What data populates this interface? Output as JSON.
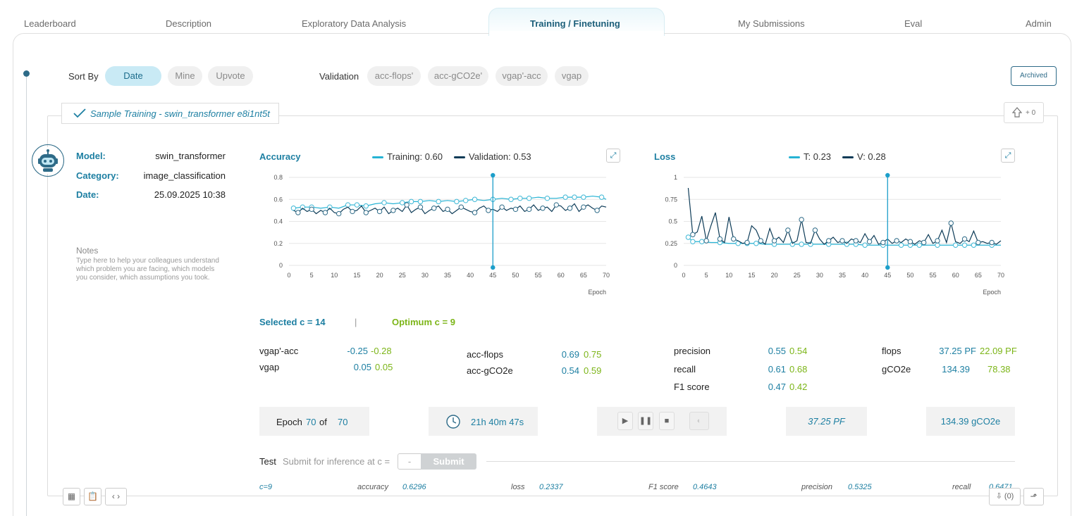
{
  "tabs": [
    {
      "label": "Leaderboard"
    },
    {
      "label": "Description"
    },
    {
      "label": "Exploratory Data Analysis"
    },
    {
      "label": "Training / Finetuning"
    },
    {
      "label": "My Submissions"
    },
    {
      "label": "Eval"
    },
    {
      "label": "Admin"
    }
  ],
  "filters": {
    "sort_by_label": "Sort By",
    "sort_options": [
      "Date",
      "Mine",
      "Upvote"
    ],
    "validation_label": "Validation",
    "validation_options": [
      "acc-flops'",
      "acc-gCO2e'",
      "vgap'-acc",
      "vgap"
    ],
    "archived_label": "Archived"
  },
  "card": {
    "title": "Sample Training - swin_transformer  e8i1nt5t",
    "upvotes": "+ 0",
    "model_key": "Model:",
    "model": "swin_transformer",
    "category_key": "Category:",
    "category": "image_classification",
    "date_key": "Date:",
    "date": "25.09.2025 10:38",
    "notes_label": "Notes",
    "notes_placeholder": "Type here to help your colleagues understand which problem you are facing, which models you consider, which assumptions you took."
  },
  "accuracy_chart": {
    "title": "Accuracy",
    "legend_training": "Training: 0.60",
    "legend_validation": "Validation: 0.53",
    "xlabel": "Epoch"
  },
  "loss_chart": {
    "title": "Loss",
    "legend_training": "T: 0.23",
    "legend_validation": "V: 0.28",
    "xlabel": "Epoch"
  },
  "selection": {
    "selected": "Selected c = 14",
    "separator": "|",
    "optimum": "Optimum c = 9"
  },
  "metrics": {
    "vgap_acc": {
      "name": "vgap'-acc",
      "sel": "-0.25",
      "opt": "-0.28"
    },
    "vgap": {
      "name": "vgap",
      "sel": "0.05",
      "opt": "0.05"
    },
    "acc_flops": {
      "name": "acc-flops",
      "sel": "0.69",
      "opt": "0.75"
    },
    "acc_gco2e": {
      "name": "acc-gCO2e",
      "sel": "0.54",
      "opt": "0.59"
    },
    "precision": {
      "name": "precision",
      "sel": "0.55",
      "opt": "0.54"
    },
    "recall": {
      "name": "recall",
      "sel": "0.61",
      "opt": "0.68"
    },
    "f1": {
      "name": "F1 score",
      "sel": "0.47",
      "opt": "0.42"
    },
    "flops": {
      "name": "flops",
      "sel": "37.25 PF",
      "opt": "22.09 PF"
    },
    "gco2e": {
      "name": "gCO2e",
      "sel": "134.39",
      "opt": "78.38"
    }
  },
  "status": {
    "epoch_label": "Epoch",
    "epoch_current": "70",
    "epoch_of": "of",
    "epoch_total": "70",
    "duration": "21h 40m 47s",
    "flops": "37.25 PF",
    "co2": "134.39 gCO2e"
  },
  "test": {
    "label": "Test",
    "sub": "Submit for inference at c =",
    "input_value": "-",
    "submit_label": "Submit",
    "results": [
      {
        "key": "c=9",
        "value": ""
      },
      {
        "key": "accuracy",
        "value": "0.6296"
      },
      {
        "key": "loss",
        "value": "0.2337"
      },
      {
        "key": "F1 score",
        "value": "0.4643"
      },
      {
        "key": "precision",
        "value": "0.5325"
      },
      {
        "key": "recall",
        "value": "0.6471"
      }
    ]
  },
  "footer": {
    "download_count": "(0)"
  },
  "colors": {
    "accent": "#1d7fa2",
    "training": "#26b3d4",
    "validation": "#0d3b57",
    "optimum": "#7cb518"
  },
  "chart_data": [
    {
      "type": "line",
      "title": "Accuracy",
      "xlabel": "Epoch",
      "ylabel": "",
      "xlim": [
        0,
        70
      ],
      "ylim": [
        0,
        0.8
      ],
      "xticks": [
        0,
        5,
        10,
        15,
        20,
        25,
        30,
        35,
        40,
        45,
        50,
        55,
        60,
        65,
        70
      ],
      "yticks": [
        "0",
        "0.2",
        "0.4",
        "0.6",
        "0.8"
      ],
      "marker_epoch": 45,
      "series": [
        {
          "name": "Training",
          "x": [
            1,
            3,
            5,
            7,
            9,
            11,
            13,
            15,
            17,
            19,
            21,
            23,
            25,
            27,
            29,
            31,
            33,
            35,
            37,
            39,
            41,
            43,
            45,
            47,
            49,
            51,
            53,
            55,
            57,
            59,
            61,
            63,
            65,
            67,
            69,
            70
          ],
          "values": [
            0.52,
            0.53,
            0.53,
            0.52,
            0.53,
            0.52,
            0.55,
            0.55,
            0.54,
            0.56,
            0.57,
            0.56,
            0.57,
            0.58,
            0.58,
            0.59,
            0.58,
            0.59,
            0.58,
            0.59,
            0.6,
            0.59,
            0.6,
            0.61,
            0.6,
            0.61,
            0.61,
            0.62,
            0.61,
            0.61,
            0.62,
            0.62,
            0.62,
            0.63,
            0.62,
            0.6
          ]
        },
        {
          "name": "Validation",
          "x": [
            1,
            2,
            3,
            4,
            5,
            6,
            7,
            8,
            9,
            10,
            11,
            12,
            13,
            14,
            15,
            16,
            17,
            18,
            19,
            20,
            21,
            22,
            23,
            24,
            25,
            26,
            27,
            28,
            29,
            30,
            31,
            32,
            33,
            34,
            35,
            36,
            37,
            38,
            39,
            40,
            41,
            42,
            43,
            44,
            45,
            46,
            47,
            48,
            49,
            50,
            51,
            52,
            53,
            54,
            55,
            56,
            57,
            58,
            59,
            60,
            61,
            62,
            63,
            64,
            65,
            66,
            67,
            68,
            69,
            70
          ],
          "values": [
            0.5,
            0.48,
            0.52,
            0.49,
            0.51,
            0.47,
            0.5,
            0.48,
            0.52,
            0.48,
            0.47,
            0.51,
            0.53,
            0.49,
            0.5,
            0.54,
            0.48,
            0.5,
            0.52,
            0.49,
            0.53,
            0.47,
            0.5,
            0.52,
            0.49,
            0.55,
            0.48,
            0.51,
            0.53,
            0.47,
            0.5,
            0.52,
            0.54,
            0.49,
            0.51,
            0.47,
            0.5,
            0.53,
            0.51,
            0.49,
            0.48,
            0.52,
            0.54,
            0.5,
            0.51,
            0.49,
            0.53,
            0.5,
            0.52,
            0.51,
            0.54,
            0.49,
            0.51,
            0.55,
            0.5,
            0.52,
            0.53,
            0.49,
            0.55,
            0.54,
            0.5,
            0.52,
            0.56,
            0.49,
            0.53,
            0.55,
            0.52,
            0.5,
            0.54,
            0.53
          ]
        }
      ]
    },
    {
      "type": "line",
      "title": "Loss",
      "xlabel": "Epoch",
      "ylabel": "",
      "xlim": [
        0,
        70
      ],
      "ylim": [
        0,
        1
      ],
      "xticks": [
        0,
        5,
        10,
        15,
        20,
        25,
        30,
        35,
        40,
        45,
        50,
        55,
        60,
        65,
        70
      ],
      "yticks": [
        "0",
        "0.25",
        "0.5",
        "0.75",
        "1"
      ],
      "marker_epoch": 45,
      "series": [
        {
          "name": "T",
          "x": [
            1,
            2,
            4,
            6,
            8,
            10,
            12,
            14,
            16,
            18,
            20,
            22,
            24,
            26,
            28,
            30,
            32,
            34,
            36,
            38,
            40,
            42,
            44,
            46,
            48,
            50,
            52,
            54,
            56,
            58,
            60,
            62,
            64,
            66,
            68,
            70
          ],
          "values": [
            0.32,
            0.27,
            0.27,
            0.26,
            0.26,
            0.25,
            0.25,
            0.25,
            0.25,
            0.24,
            0.24,
            0.24,
            0.24,
            0.24,
            0.24,
            0.24,
            0.24,
            0.24,
            0.24,
            0.24,
            0.23,
            0.23,
            0.23,
            0.23,
            0.23,
            0.23,
            0.23,
            0.23,
            0.23,
            0.23,
            0.23,
            0.23,
            0.23,
            0.23,
            0.23,
            0.23
          ]
        },
        {
          "name": "V",
          "x": [
            1,
            2,
            3,
            4,
            5,
            6,
            7,
            8,
            9,
            10,
            11,
            12,
            13,
            14,
            15,
            16,
            17,
            18,
            19,
            20,
            21,
            22,
            23,
            24,
            25,
            26,
            27,
            28,
            29,
            30,
            31,
            32,
            33,
            34,
            35,
            36,
            37,
            38,
            39,
            40,
            41,
            42,
            43,
            44,
            45,
            46,
            47,
            48,
            49,
            50,
            51,
            52,
            53,
            54,
            55,
            56,
            57,
            58,
            59,
            60,
            61,
            62,
            63,
            64,
            65,
            66,
            67,
            68,
            69,
            70
          ],
          "values": [
            0.88,
            0.35,
            0.38,
            0.56,
            0.28,
            0.45,
            0.6,
            0.3,
            0.26,
            0.55,
            0.3,
            0.28,
            0.25,
            0.26,
            0.45,
            0.4,
            0.28,
            0.24,
            0.42,
            0.28,
            0.32,
            0.26,
            0.4,
            0.25,
            0.28,
            0.52,
            0.26,
            0.25,
            0.4,
            0.3,
            0.24,
            0.28,
            0.32,
            0.26,
            0.28,
            0.25,
            0.3,
            0.28,
            0.26,
            0.36,
            0.27,
            0.34,
            0.24,
            0.26,
            0.3,
            0.25,
            0.28,
            0.26,
            0.3,
            0.27,
            0.24,
            0.28,
            0.26,
            0.35,
            0.25,
            0.28,
            0.4,
            0.26,
            0.48,
            0.27,
            0.25,
            0.3,
            0.27,
            0.39,
            0.26,
            0.27,
            0.25,
            0.26,
            0.24,
            0.28
          ]
        }
      ]
    }
  ]
}
